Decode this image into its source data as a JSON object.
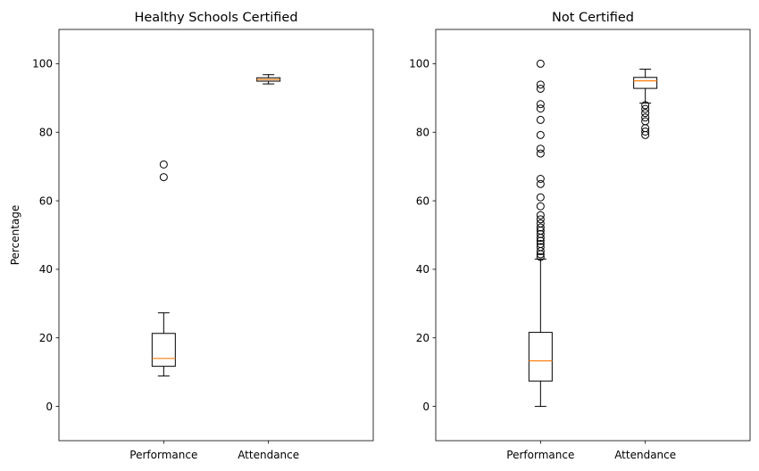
{
  "chart_data": [
    {
      "type": "boxplot",
      "title": "Healthy Schools Certified",
      "xlabel": "",
      "ylabel": "Percentage",
      "ylim": [
        -10,
        110
      ],
      "yticks": [
        0,
        20,
        40,
        60,
        80,
        100
      ],
      "grid": false,
      "categories": [
        "Performance",
        "Attendance"
      ],
      "boxes": [
        {
          "category": "Performance",
          "whisker_low": 8.9,
          "q1": 11.7,
          "median": 14.0,
          "q3": 21.3,
          "whisker_high": 27.3,
          "outliers": [
            66.9,
            70.6
          ]
        },
        {
          "category": "Attendance",
          "whisker_low": 94.1,
          "q1": 94.9,
          "median": 95.4,
          "q3": 95.9,
          "whisker_high": 96.8,
          "outliers": []
        }
      ]
    },
    {
      "type": "boxplot",
      "title": "Not Certified",
      "xlabel": "",
      "ylabel": "",
      "ylim": [
        -10,
        110
      ],
      "yticks": [
        0,
        20,
        40,
        60,
        80,
        100
      ],
      "grid": false,
      "categories": [
        "Performance",
        "Attendance"
      ],
      "boxes": [
        {
          "category": "Performance",
          "whisker_low": 0.0,
          "q1": 7.4,
          "median": 13.3,
          "q3": 21.6,
          "whisker_high": 43.0,
          "outliers": [
            43.6,
            44.4,
            45.3,
            46.5,
            47.4,
            48.3,
            49.2,
            50.3,
            51.3,
            52.2,
            53.4,
            54.6,
            55.8,
            58.4,
            61.0,
            64.9,
            66.4,
            73.8,
            75.2,
            79.2,
            83.6,
            86.9,
            88.2,
            92.7,
            93.9,
            100.0
          ]
        },
        {
          "category": "Attendance",
          "whisker_low": 88.5,
          "q1": 92.8,
          "median": 95.0,
          "q3": 96.0,
          "whisker_high": 98.4,
          "outliers": [
            79.2,
            80.2,
            81.2,
            83.2,
            84.3,
            85.6,
            86.8,
            87.9
          ]
        }
      ]
    }
  ],
  "colors": {
    "median": "#ff7f0e",
    "box": "#000000",
    "outlier": "#000000"
  }
}
